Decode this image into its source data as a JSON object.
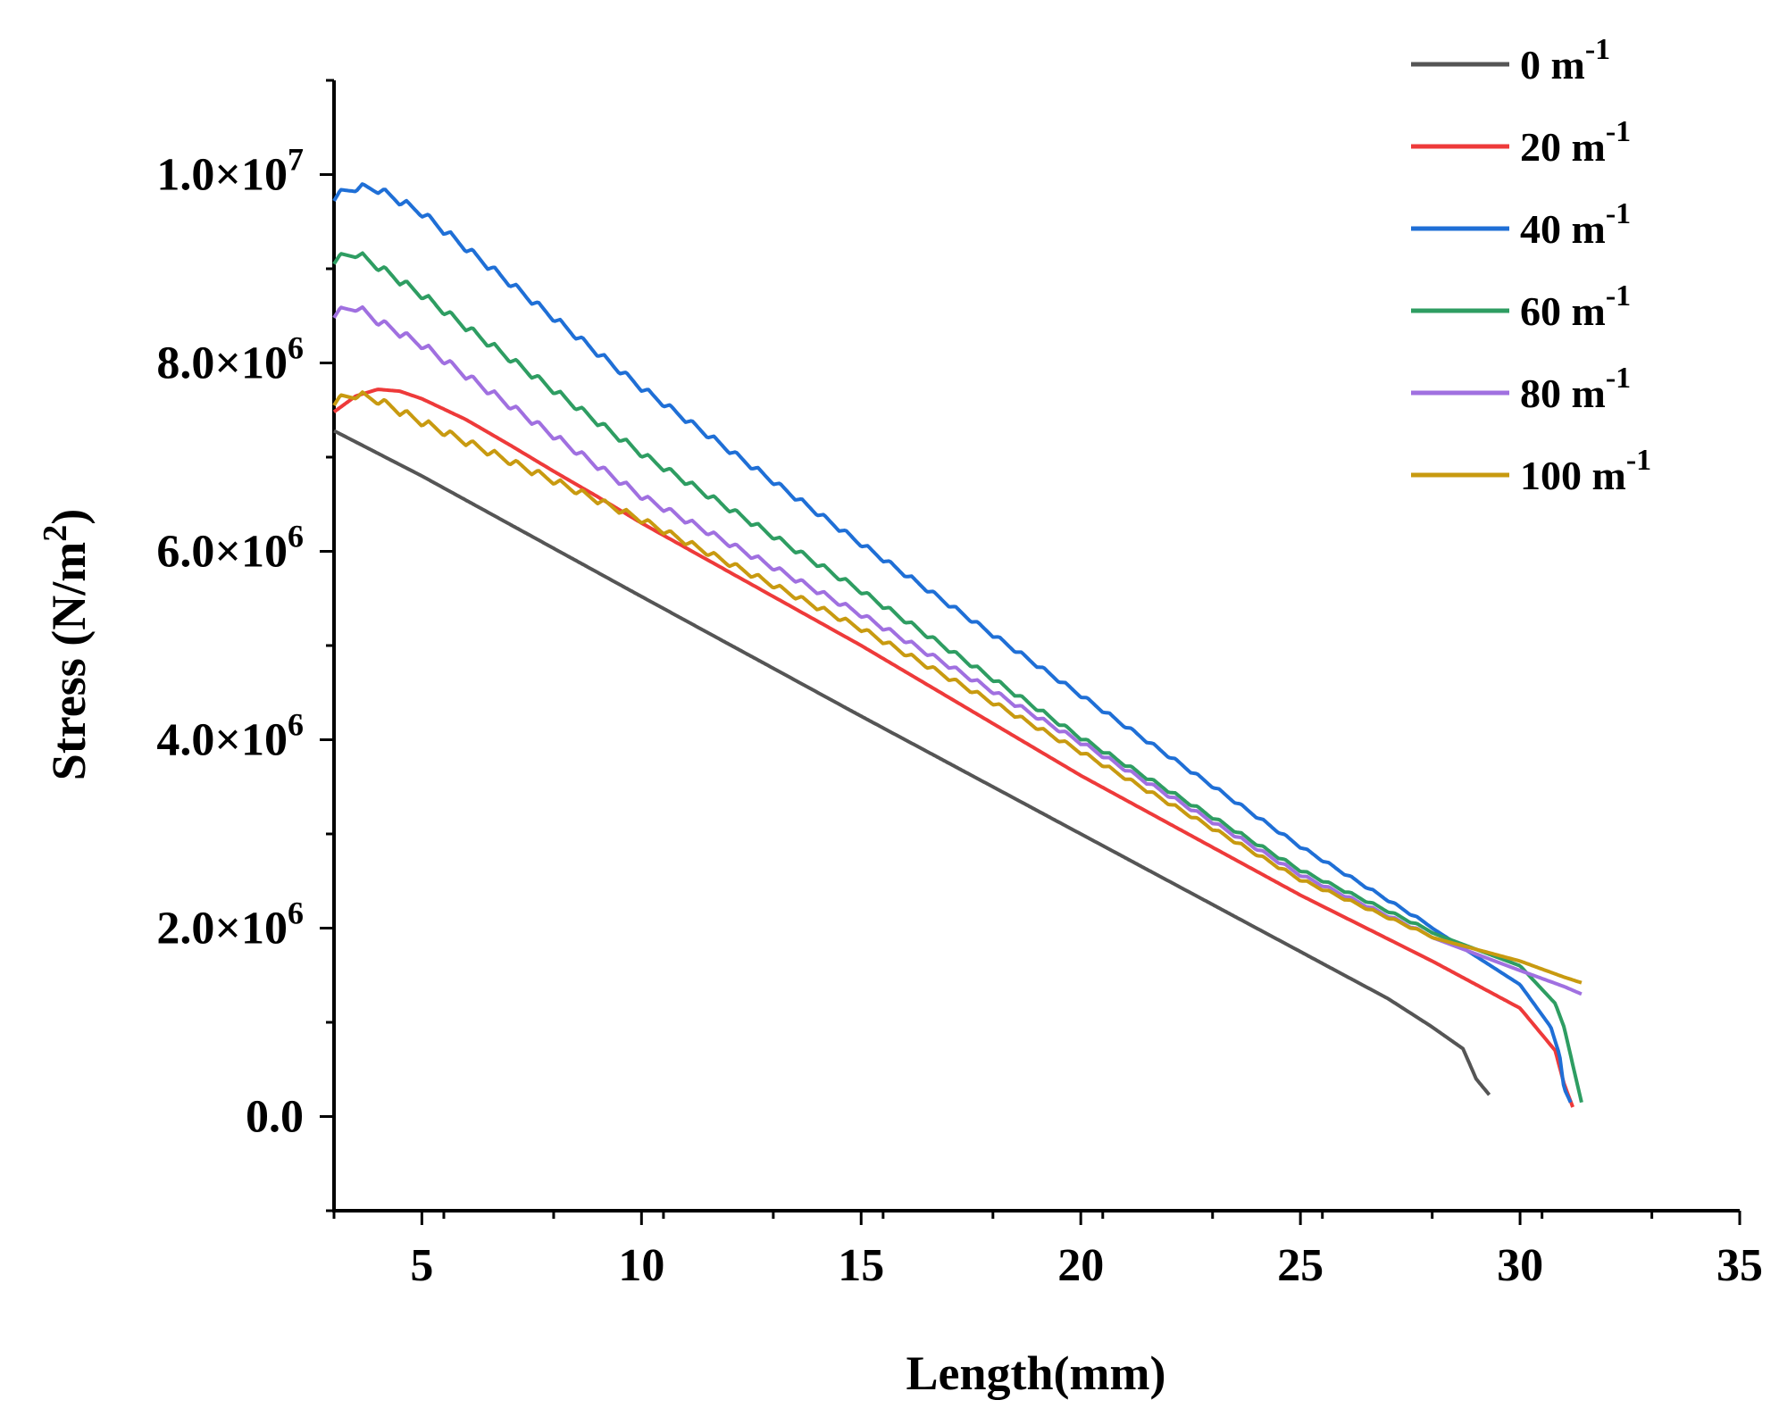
{
  "chart_data": {
    "type": "line",
    "title": "",
    "xlabel": "Length(mm)",
    "ylabel_main": "Stress (N/m",
    "ylabel_sup": "2",
    "ylabel_close": ")",
    "xlim": [
      3,
      35
    ],
    "ylim": [
      -1000000,
      11000000
    ],
    "x_ticks": [
      5,
      10,
      15,
      20,
      25,
      30,
      35
    ],
    "x_tick_labels": [
      "5",
      "10",
      "15",
      "20",
      "25",
      "30",
      "35"
    ],
    "y_ticks": [
      {
        "value": 0,
        "mantissa": "0.0",
        "exp": ""
      },
      {
        "value": 2000000,
        "mantissa": "2.0×10",
        "exp": "6"
      },
      {
        "value": 4000000,
        "mantissa": "4.0×10",
        "exp": "6"
      },
      {
        "value": 6000000,
        "mantissa": "6.0×10",
        "exp": "6"
      },
      {
        "value": 8000000,
        "mantissa": "8.0×10",
        "exp": "6"
      },
      {
        "value": 10000000,
        "mantissa": "1.0×10",
        "exp": "7"
      }
    ],
    "legend_position": "top-right",
    "series": [
      {
        "name": "0 m",
        "sup": "-1",
        "color": "#555555",
        "wave": 0,
        "x": [
          3.0,
          5.0,
          10.0,
          15.0,
          20.0,
          25.0,
          27.0,
          28.0,
          28.7,
          29.0,
          29.3
        ],
        "y": [
          7280000,
          6800000,
          5520000,
          4250000,
          3000000,
          1750000,
          1250000,
          950000,
          720000,
          400000,
          230000
        ]
      },
      {
        "name": "20 m",
        "sup": "-1",
        "color": "#ee3a3a",
        "wave": 0,
        "x": [
          3.0,
          3.5,
          4.0,
          4.5,
          5.0,
          6.0,
          7.0,
          8.0,
          9.0,
          10.0,
          15.0,
          20.0,
          25.0,
          28.0,
          30.0,
          30.8,
          31.0,
          31.2
        ],
        "y": [
          7480000,
          7650000,
          7720000,
          7700000,
          7620000,
          7400000,
          7130000,
          6850000,
          6580000,
          6300000,
          5000000,
          3620000,
          2350000,
          1650000,
          1150000,
          700000,
          350000,
          100000
        ]
      },
      {
        "name": "40 m",
        "sup": "-1",
        "color": "#1f6fd6",
        "wave": 45000,
        "x": [
          3.0,
          3.5,
          4.0,
          5.0,
          10.0,
          15.0,
          20.0,
          25.0,
          28.0,
          30.0,
          30.7,
          30.9,
          31.0,
          31.15
        ],
        "y": [
          9720000,
          9820000,
          9800000,
          9550000,
          7700000,
          6050000,
          4450000,
          2850000,
          2000000,
          1400000,
          950000,
          650000,
          300000,
          150000
        ]
      },
      {
        "name": "60 m",
        "sup": "-1",
        "color": "#2e9d62",
        "wave": 45000,
        "x": [
          3.0,
          3.5,
          4.0,
          5.0,
          10.0,
          15.0,
          20.0,
          25.0,
          28.0,
          30.0,
          30.8,
          31.0,
          31.2,
          31.4
        ],
        "y": [
          9050000,
          9120000,
          8980000,
          8680000,
          7000000,
          5550000,
          4000000,
          2600000,
          1950000,
          1600000,
          1200000,
          950000,
          550000,
          150000
        ]
      },
      {
        "name": "80 m",
        "sup": "-1",
        "color": "#a070e0",
        "wave": 45000,
        "x": [
          3.0,
          3.5,
          4.0,
          5.0,
          10.0,
          15.0,
          20.0,
          25.0,
          28.0,
          30.0,
          31.0,
          31.4
        ],
        "y": [
          8480000,
          8550000,
          8400000,
          8150000,
          6550000,
          5300000,
          3950000,
          2550000,
          1900000,
          1550000,
          1380000,
          1300000
        ]
      },
      {
        "name": "100 m",
        "sup": "-1",
        "color": "#c89a10",
        "wave": 45000,
        "x": [
          3.0,
          3.5,
          4.0,
          5.0,
          10.0,
          15.0,
          20.0,
          25.0,
          28.0,
          30.0,
          31.0,
          31.4
        ],
        "y": [
          7550000,
          7620000,
          7560000,
          7330000,
          6300000,
          5150000,
          3850000,
          2500000,
          1900000,
          1650000,
          1480000,
          1420000
        ]
      }
    ]
  }
}
